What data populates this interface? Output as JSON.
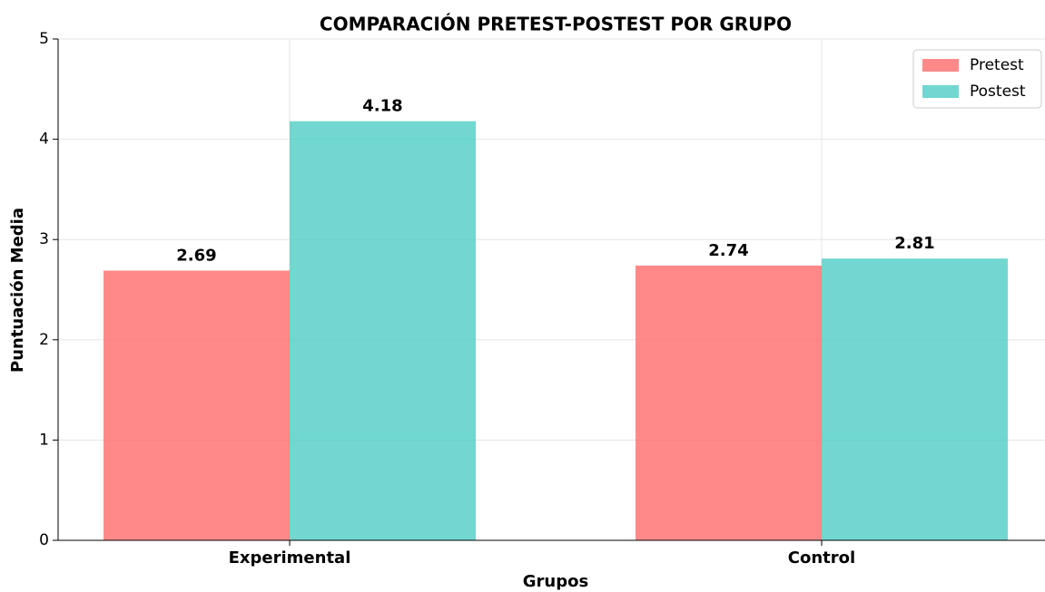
{
  "chart_data": {
    "type": "bar",
    "title": "COMPARACIÓN PRETEST-POSTEST POR GRUPO",
    "xlabel": "Grupos",
    "ylabel": "Puntuación Media",
    "categories": [
      "Experimental",
      "Control"
    ],
    "series": [
      {
        "name": "Pretest",
        "color": "#ff6b6b",
        "values": [
          2.69,
          2.74
        ]
      },
      {
        "name": "Postest",
        "color": "#4ecdc4",
        "values": [
          4.18,
          2.81
        ]
      }
    ],
    "ylim": [
      0,
      5
    ],
    "yticks": [
      0,
      1,
      2,
      3,
      4,
      5
    ],
    "grid": true,
    "legend": "upper right"
  }
}
